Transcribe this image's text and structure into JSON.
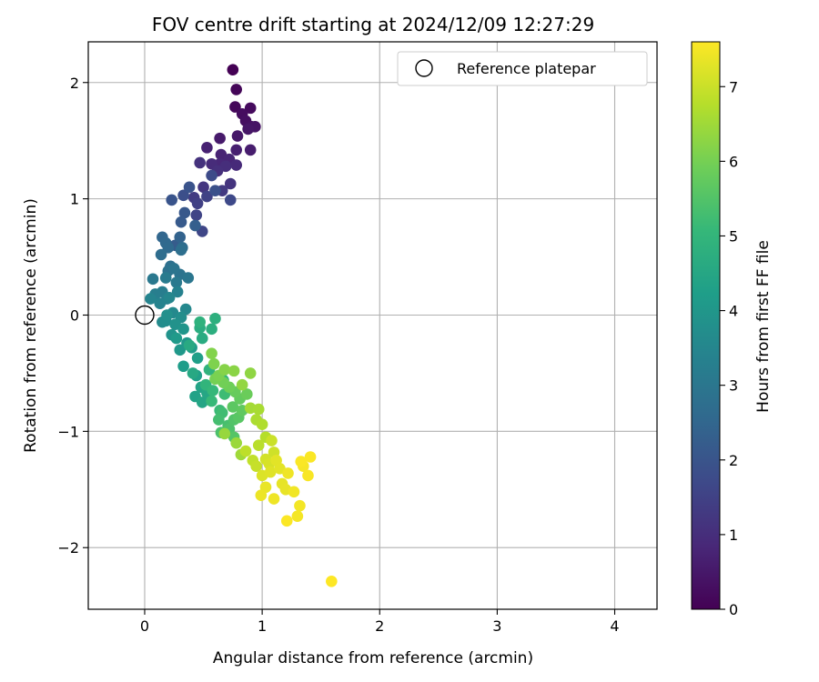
{
  "chart_data": {
    "type": "scatter",
    "title": "FOV centre drift starting at 2024/12/09 12:27:29",
    "xlabel": "Angular distance from reference (arcmin)",
    "ylabel": "Rotation from reference (arcmin)",
    "xlim": [
      -0.48,
      4.36
    ],
    "ylim": [
      -2.53,
      2.35
    ],
    "x_ticks": [
      0,
      1,
      2,
      3,
      4
    ],
    "x_tick_labels": [
      "0",
      "1",
      "2",
      "3",
      "4"
    ],
    "y_ticks": [
      2,
      1,
      0,
      -1,
      -2
    ],
    "y_tick_labels": [
      "2",
      "1",
      "0",
      "−1",
      "−2"
    ],
    "grid": true,
    "legend": {
      "position": "top-right",
      "entries": [
        "Reference platepar"
      ]
    },
    "reference_point": {
      "x": 0,
      "y": 0,
      "label": "Reference platepar"
    },
    "colorbar": {
      "label": "Hours from first FF file",
      "min": 0,
      "max": 7.6,
      "colormap": "viridis",
      "ticks": [
        0,
        1,
        2,
        3,
        4,
        5,
        6,
        7
      ],
      "tick_labels": [
        "0",
        "1",
        "2",
        "3",
        "4",
        "5",
        "6",
        "7"
      ]
    },
    "colormap_stops": [
      "#440154",
      "#482878",
      "#3e4989",
      "#31688e",
      "#26828e",
      "#1f9e89",
      "#35b779",
      "#6ece58",
      "#b5de2b",
      "#fde725"
    ],
    "point_columns": [
      "x",
      "y",
      "hours"
    ],
    "points": [
      [
        0.75,
        2.11,
        0.0
      ],
      [
        0.78,
        1.94,
        0.1
      ],
      [
        0.77,
        1.79,
        0.15
      ],
      [
        0.9,
        1.78,
        0.2
      ],
      [
        0.83,
        1.73,
        0.25
      ],
      [
        0.86,
        1.67,
        0.3
      ],
      [
        0.91,
        1.62,
        0.35
      ],
      [
        0.94,
        1.62,
        0.4
      ],
      [
        0.88,
        1.6,
        0.45
      ],
      [
        0.79,
        1.54,
        0.5
      ],
      [
        0.64,
        1.52,
        0.55
      ],
      [
        0.9,
        1.42,
        0.6
      ],
      [
        0.78,
        1.42,
        0.65
      ],
      [
        0.53,
        1.44,
        0.7
      ],
      [
        0.65,
        1.38,
        0.75
      ],
      [
        0.72,
        1.34,
        0.8
      ],
      [
        0.64,
        1.3,
        0.85
      ],
      [
        0.78,
        1.29,
        0.9
      ],
      [
        0.57,
        1.3,
        0.95
      ],
      [
        0.69,
        1.28,
        1.0
      ],
      [
        0.62,
        1.24,
        1.05
      ],
      [
        0.47,
        1.31,
        1.1
      ],
      [
        0.73,
        1.13,
        1.15
      ],
      [
        0.5,
        1.1,
        1.2
      ],
      [
        0.66,
        1.07,
        1.3
      ],
      [
        0.42,
        1.01,
        1.35
      ],
      [
        0.45,
        0.96,
        1.45
      ],
      [
        0.53,
        1.02,
        1.5
      ],
      [
        0.44,
        0.86,
        1.55
      ],
      [
        0.49,
        0.72,
        1.6
      ],
      [
        0.73,
        0.99,
        1.7
      ],
      [
        0.57,
        1.2,
        1.75
      ],
      [
        0.33,
        1.03,
        1.85
      ],
      [
        0.6,
        1.07,
        1.9
      ],
      [
        0.38,
        1.1,
        1.95
      ],
      [
        0.23,
        0.99,
        2.0
      ],
      [
        0.34,
        0.88,
        2.1
      ],
      [
        0.31,
        0.8,
        2.15
      ],
      [
        0.26,
        0.6,
        2.2
      ],
      [
        0.43,
        0.77,
        2.3
      ],
      [
        0.3,
        0.67,
        2.4
      ],
      [
        0.15,
        0.67,
        2.5
      ],
      [
        0.18,
        0.62,
        2.55
      ],
      [
        0.2,
        0.58,
        2.6
      ],
      [
        0.32,
        0.58,
        2.65
      ],
      [
        0.14,
        0.52,
        2.7
      ],
      [
        0.31,
        0.56,
        2.75
      ],
      [
        0.22,
        0.42,
        2.8
      ],
      [
        0.2,
        0.38,
        2.85
      ],
      [
        0.3,
        0.35,
        2.9
      ],
      [
        0.25,
        0.4,
        2.95
      ],
      [
        0.37,
        0.32,
        3.0
      ],
      [
        0.07,
        0.31,
        3.05
      ],
      [
        0.27,
        0.28,
        3.1
      ],
      [
        0.18,
        0.32,
        3.15
      ],
      [
        0.15,
        0.2,
        3.2
      ],
      [
        0.09,
        0.18,
        3.25
      ],
      [
        0.19,
        0.14,
        3.3
      ],
      [
        0.28,
        0.2,
        3.35
      ],
      [
        0.13,
        0.1,
        3.4
      ],
      [
        0.05,
        0.14,
        3.45
      ],
      [
        0.21,
        0.15,
        3.5
      ],
      [
        0.35,
        0.05,
        3.55
      ],
      [
        0.24,
        0.02,
        3.6
      ],
      [
        0.15,
        -0.06,
        3.65
      ],
      [
        0.18,
        -0.05,
        3.7
      ],
      [
        0.31,
        -0.02,
        3.75
      ],
      [
        0.19,
        0.0,
        3.8
      ],
      [
        0.26,
        -0.08,
        3.85
      ],
      [
        0.23,
        -0.17,
        3.9
      ],
      [
        0.33,
        -0.12,
        3.95
      ],
      [
        0.36,
        -0.24,
        4.0
      ],
      [
        0.3,
        -0.3,
        4.05
      ],
      [
        0.27,
        -0.2,
        4.1
      ],
      [
        0.4,
        -0.28,
        4.15
      ],
      [
        0.33,
        -0.44,
        4.2
      ],
      [
        0.45,
        -0.37,
        4.25
      ],
      [
        0.44,
        -0.52,
        4.3
      ],
      [
        0.43,
        -0.7,
        4.35
      ],
      [
        0.48,
        -0.62,
        4.4
      ],
      [
        0.49,
        -0.75,
        4.45
      ],
      [
        0.53,
        -0.67,
        4.5
      ],
      [
        0.41,
        -0.5,
        4.55
      ],
      [
        0.38,
        -0.26,
        4.6
      ],
      [
        0.49,
        -0.2,
        4.65
      ],
      [
        0.47,
        -0.11,
        4.7
      ],
      [
        0.57,
        -0.12,
        4.75
      ],
      [
        0.6,
        -0.03,
        4.8
      ],
      [
        0.47,
        -0.06,
        4.85
      ],
      [
        0.55,
        -0.47,
        4.9
      ],
      [
        0.52,
        -0.6,
        4.95
      ],
      [
        0.67,
        -0.56,
        5.0
      ],
      [
        0.58,
        -0.65,
        5.05
      ],
      [
        0.57,
        -0.74,
        5.1
      ],
      [
        0.64,
        -0.82,
        5.15
      ],
      [
        0.68,
        -0.68,
        5.2
      ],
      [
        0.66,
        -0.84,
        5.25
      ],
      [
        0.63,
        -0.9,
        5.3
      ],
      [
        0.71,
        -0.95,
        5.35
      ],
      [
        0.65,
        -1.01,
        5.4
      ],
      [
        0.72,
        -0.98,
        5.45
      ],
      [
        0.76,
        -0.9,
        5.5
      ],
      [
        0.76,
        -1.05,
        5.55
      ],
      [
        0.8,
        -0.88,
        5.6
      ],
      [
        0.75,
        -0.79,
        5.65
      ],
      [
        0.83,
        -0.82,
        5.7
      ],
      [
        0.81,
        -0.72,
        5.75
      ],
      [
        0.77,
        -0.66,
        5.8
      ],
      [
        0.87,
        -0.68,
        5.85
      ],
      [
        0.72,
        -0.62,
        5.9
      ],
      [
        0.67,
        -0.58,
        5.95
      ],
      [
        0.6,
        -0.55,
        6.0
      ],
      [
        0.63,
        -0.52,
        6.05
      ],
      [
        0.59,
        -0.42,
        6.1
      ],
      [
        0.57,
        -0.33,
        6.15
      ],
      [
        0.68,
        -0.47,
        6.2
      ],
      [
        0.76,
        -0.48,
        6.25
      ],
      [
        0.9,
        -0.5,
        6.3
      ],
      [
        0.83,
        -0.6,
        6.35
      ],
      [
        0.68,
        -1.02,
        6.4
      ],
      [
        0.78,
        -1.1,
        6.45
      ],
      [
        0.82,
        -1.2,
        6.5
      ],
      [
        0.9,
        -0.8,
        6.55
      ],
      [
        0.97,
        -0.81,
        6.6
      ],
      [
        0.95,
        -0.9,
        6.65
      ],
      [
        1.0,
        -0.94,
        6.7
      ],
      [
        1.03,
        -1.05,
        6.75
      ],
      [
        0.97,
        -1.12,
        6.8
      ],
      [
        0.86,
        -1.17,
        6.85
      ],
      [
        0.92,
        -1.25,
        6.9
      ],
      [
        0.95,
        -1.3,
        6.95
      ],
      [
        1.08,
        -1.08,
        7.0
      ],
      [
        1.1,
        -1.18,
        7.05
      ],
      [
        1.03,
        -1.24,
        7.1
      ],
      [
        1.06,
        -1.28,
        7.15
      ],
      [
        1.0,
        -1.38,
        7.2
      ],
      [
        1.07,
        -1.35,
        7.25
      ],
      [
        1.12,
        -1.25,
        7.28
      ],
      [
        1.15,
        -1.32,
        7.3
      ],
      [
        1.17,
        -1.45,
        7.33
      ],
      [
        1.2,
        -1.5,
        7.35
      ],
      [
        1.03,
        -1.48,
        7.37
      ],
      [
        0.99,
        -1.55,
        7.4
      ],
      [
        1.1,
        -1.58,
        7.42
      ],
      [
        1.22,
        -1.36,
        7.44
      ],
      [
        1.27,
        -1.52,
        7.46
      ],
      [
        1.32,
        -1.64,
        7.48
      ],
      [
        1.3,
        -1.73,
        7.5
      ],
      [
        1.35,
        -1.3,
        7.52
      ],
      [
        1.39,
        -1.38,
        7.54
      ],
      [
        1.41,
        -1.22,
        7.56
      ],
      [
        1.33,
        -1.26,
        7.57
      ],
      [
        1.21,
        -1.77,
        7.58
      ],
      [
        1.59,
        -2.29,
        7.6
      ]
    ]
  }
}
